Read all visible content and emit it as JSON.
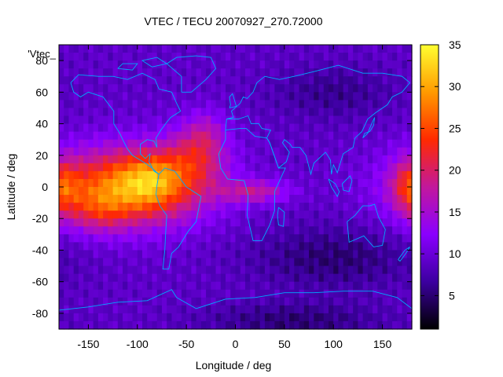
{
  "chart_data": {
    "type": "heatmap",
    "title": "VTEC / TECU 20070927_270.72000",
    "xlabel": "Longitude / deg",
    "ylabel": "Latitude / deg",
    "series_label": "'Vtec_",
    "xlim": [
      -180,
      180
    ],
    "ylim": [
      -90,
      90
    ],
    "x_ticks": [
      -150,
      -100,
      -50,
      0,
      50,
      100,
      150
    ],
    "y_ticks": [
      80,
      60,
      40,
      20,
      0,
      -20,
      -40,
      -60,
      -80
    ],
    "colorbar": {
      "range": [
        1,
        35
      ],
      "ticks": [
        5,
        10,
        15,
        20,
        25,
        30,
        35
      ],
      "palette": [
        "#000000",
        "#3c00a0",
        "#8a00ff",
        "#c2189c",
        "#ff2a00",
        "#ff9a00",
        "#ffff30"
      ]
    },
    "background_level": 9,
    "regions": [
      {
        "lon": -110,
        "lat": 0,
        "sx": 55,
        "sy": 17,
        "tec": 19
      },
      {
        "lon": -85,
        "lat": 5,
        "sx": 22,
        "sy": 12,
        "tec": 7
      },
      {
        "lon": -140,
        "lat": -15,
        "sx": 22,
        "sy": 10,
        "tec": 5
      },
      {
        "lon": -40,
        "lat": 20,
        "sx": 22,
        "sy": 14,
        "tec": 8
      },
      {
        "lon": -30,
        "lat": 35,
        "sx": 14,
        "sy": 10,
        "tec": 4
      },
      {
        "lon": 20,
        "lat": -3,
        "sx": 25,
        "sy": 5,
        "tec": 8
      },
      {
        "lon": 180,
        "lat": 0,
        "sx": 14,
        "sy": 12,
        "tec": 9
      },
      {
        "lon": 100,
        "lat": -45,
        "sx": 60,
        "sy": 14,
        "tec": -4
      },
      {
        "lon": 60,
        "lat": -85,
        "sx": 65,
        "sy": 8,
        "tec": -4
      },
      {
        "lon": 100,
        "lat": 60,
        "sx": 45,
        "sy": 12,
        "tec": -3
      }
    ],
    "coastline_color": "#00aaff"
  }
}
